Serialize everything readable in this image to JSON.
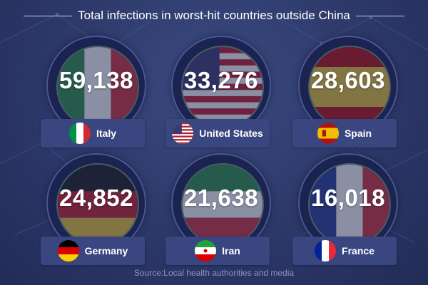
{
  "title": "Total infections in worst-hit countries outside China",
  "source": "Source:Local health authorities and media",
  "chart_data": {
    "type": "table",
    "title": "Total infections in worst-hit countries outside China",
    "categories": [
      "Italy",
      "United States",
      "Spain",
      "Germany",
      "Iran",
      "France"
    ],
    "values": [
      59138,
      33276,
      28603,
      24852,
      21638,
      16018
    ],
    "value_labels": [
      "59,138",
      "33,276",
      "28,603",
      "24,852",
      "21,638",
      "16,018"
    ],
    "flags": [
      "italy-flag-icon",
      "usa-flag-icon",
      "spain-flag-icon",
      "germany-flag-icon",
      "iran-flag-icon",
      "france-flag-icon"
    ]
  },
  "colors": {
    "background": "#2c3869",
    "label_box": "#3a4680",
    "source_text": "#8d95bd"
  }
}
